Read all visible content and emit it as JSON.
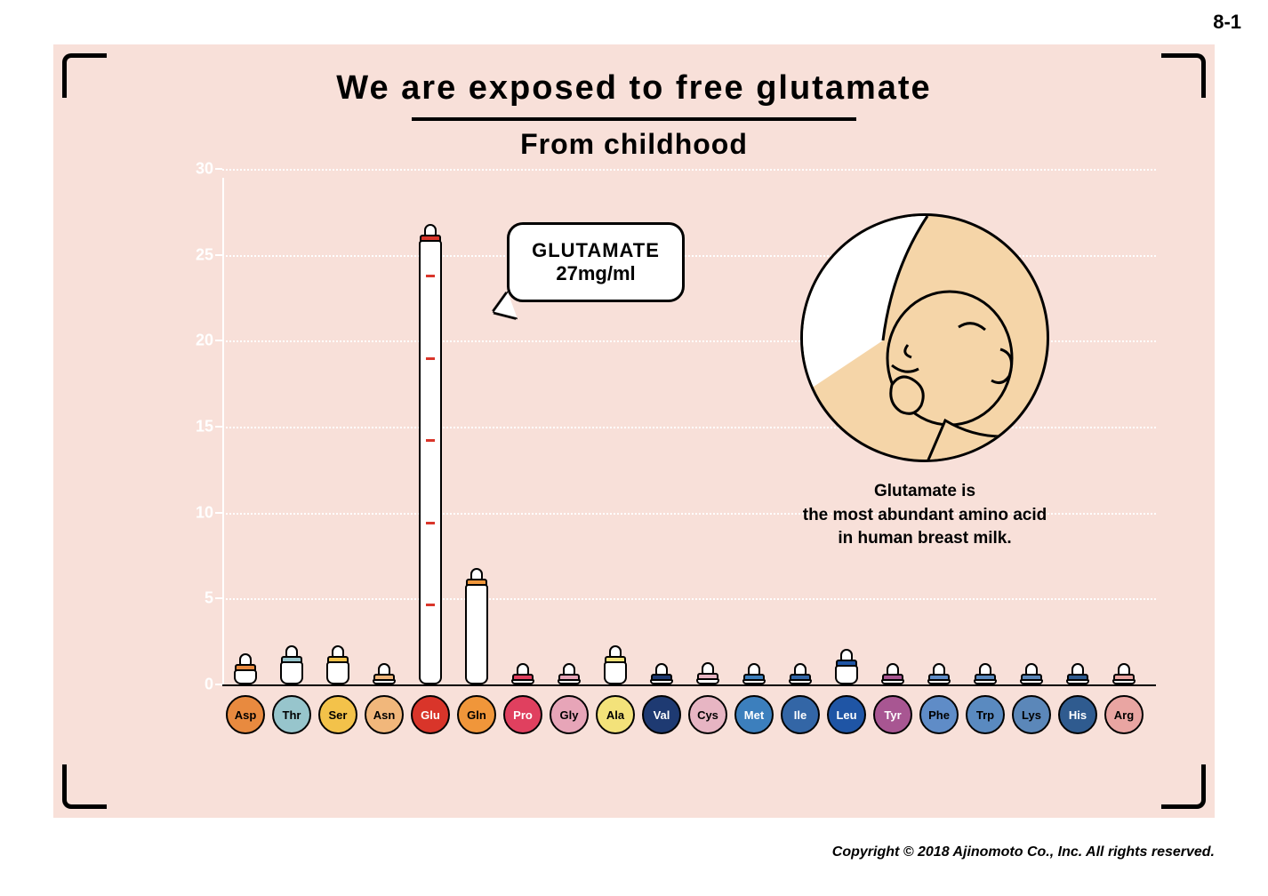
{
  "page_number": "8-1",
  "title": "We are exposed to free glutamate",
  "subtitle": "From childhood",
  "copyright": "Copyright © 2018 Ajinomoto Co., Inc. All rights reserved.",
  "background_color": "#ffffff",
  "panel_color": "#f8e0d9",
  "chart": {
    "type": "bar",
    "ylim": [
      0,
      30
    ],
    "ytick_step": 5,
    "y_labels": [
      "0",
      "5",
      "10",
      "15",
      "20",
      "25",
      "30"
    ],
    "grid_color": "#ffffff",
    "axis_color": "#000000",
    "bar_border_color": "#000000",
    "bar_fill_color": "#ffffff",
    "categories": [
      "Asp",
      "Thr",
      "Ser",
      "Asn",
      "Glu",
      "Gln",
      "Pro",
      "Gly",
      "Ala",
      "Val",
      "Cys",
      "Met",
      "Ile",
      "Leu",
      "Tyr",
      "Phe",
      "Trp",
      "Lys",
      "His",
      "Arg"
    ],
    "values": [
      2.0,
      2.5,
      2.5,
      1.3,
      27.0,
      7.0,
      1.0,
      1.0,
      2.5,
      1.3,
      1.5,
      1.3,
      1.3,
      2.3,
      1.3,
      1.3,
      1.3,
      1.3,
      1.3,
      1.3
    ],
    "category_colors": [
      "#e88a3f",
      "#97c5cc",
      "#f3c24a",
      "#f1b77b",
      "#d9352a",
      "#f0963a",
      "#e0405f",
      "#e7a5b8",
      "#f3e27a",
      "#1e3a72",
      "#e7b5c3",
      "#3c7fbd",
      "#3366a6",
      "#1f55a5",
      "#a85692",
      "#5f8cc7",
      "#5a8ac0",
      "#5b87b9",
      "#2f5b8f",
      "#e9a5a2"
    ],
    "category_text_colors": [
      "#000000",
      "#000000",
      "#000000",
      "#000000",
      "#ffffff",
      "#000000",
      "#ffffff",
      "#000000",
      "#000000",
      "#ffffff",
      "#000000",
      "#ffffff",
      "#ffffff",
      "#ffffff",
      "#ffffff",
      "#000000",
      "#000000",
      "#000000",
      "#ffffff",
      "#000000"
    ]
  },
  "callout": {
    "title": "GLUTAMATE",
    "value": "27mg/ml",
    "bg_color": "#ffffff",
    "border_color": "#000000"
  },
  "caption_line1": "Glutamate is",
  "caption_line2": "the most abundant amino acid",
  "caption_line3": "in human breast milk.",
  "illustration": {
    "bg_color": "#f5d5a8",
    "skin_color": "#f5d5a8",
    "line_color": "#000000"
  }
}
